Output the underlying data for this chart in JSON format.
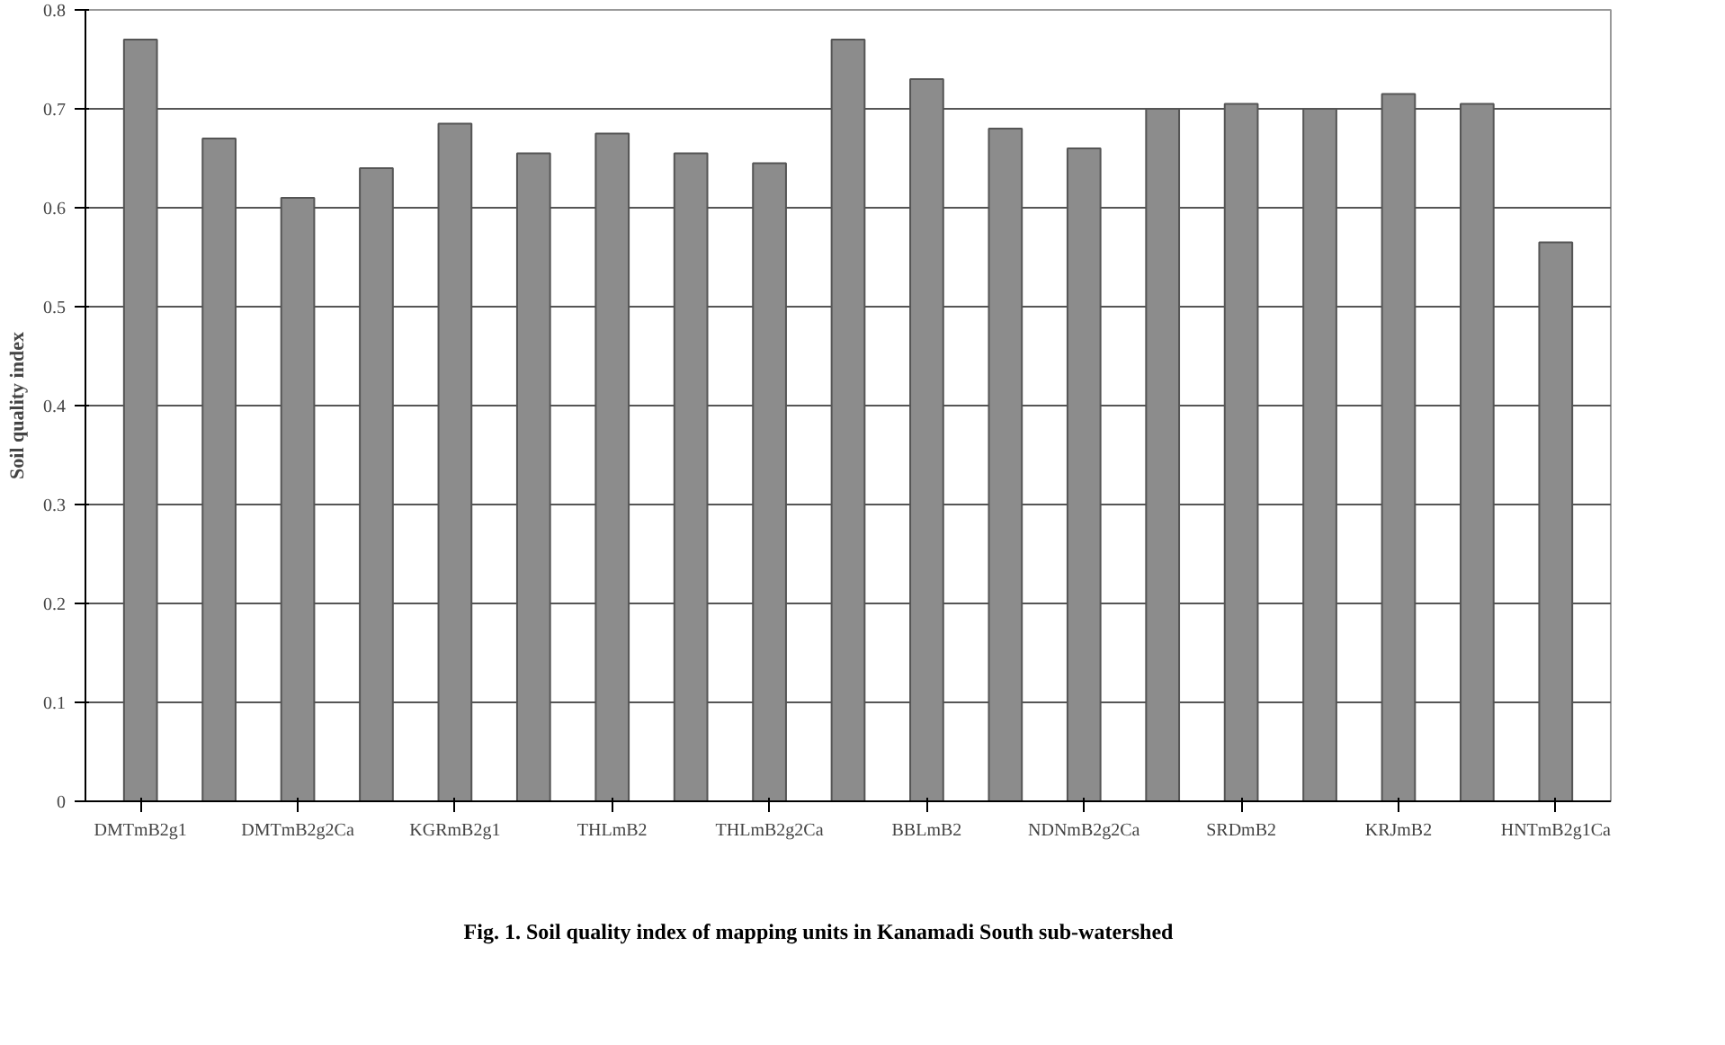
{
  "chart_data": {
    "type": "bar",
    "ylabel": "Soil quality index",
    "categories": [
      "DMTmB2g1",
      null,
      "DMTmB2g2Ca",
      null,
      "KGRmB2g1",
      null,
      "THLmB2",
      null,
      "THLmB2g2Ca",
      null,
      "BBLmB2",
      null,
      "NDNmB2g2Ca",
      null,
      "SRDmB2",
      null,
      "KRJmB2",
      null,
      "HNTmB2g1Ca"
    ],
    "values": [
      0.77,
      0.67,
      0.61,
      0.64,
      0.685,
      0.655,
      0.675,
      0.655,
      0.645,
      0.77,
      0.73,
      0.68,
      0.66,
      0.7,
      0.705,
      0.7,
      0.715,
      0.705,
      0.565
    ],
    "color": "#8c8c8c",
    "ylim": [
      0,
      0.8
    ],
    "yticks": [
      0,
      0.1,
      0.2,
      0.3,
      0.4,
      0.5,
      0.6,
      0.7,
      0.8
    ],
    "grid": "y",
    "annotations": [
      "Fig. 1. Soil quality index of mapping units in Kanamadi South sub-watershed"
    ]
  }
}
